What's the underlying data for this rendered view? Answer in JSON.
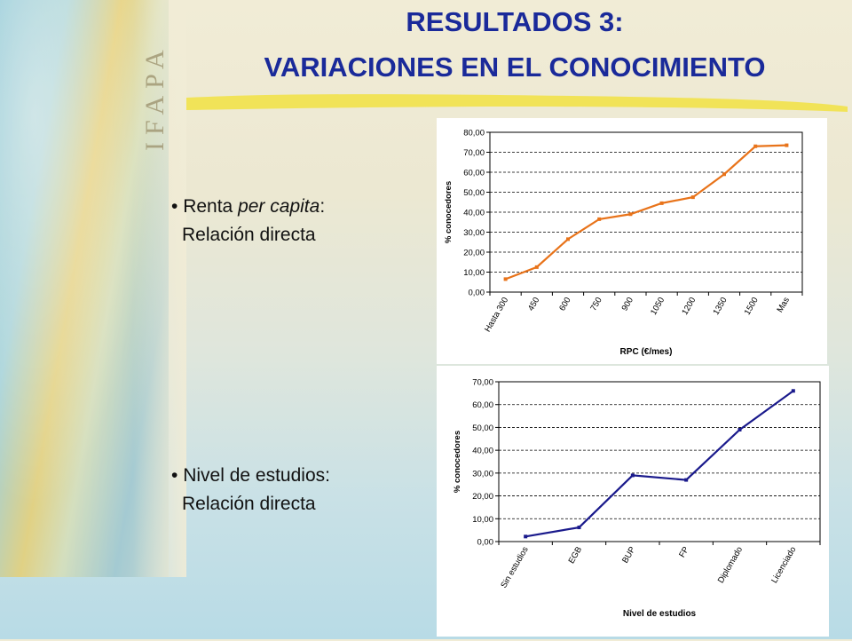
{
  "slide": {
    "logo_text": "IFAPA",
    "title_line1": "RESULTADOS 3:",
    "title_line2": "VARIACIONES EN EL CONOCIMIENTO",
    "bullet1": {
      "marker": "•",
      "pre": "Renta ",
      "italic": "per capita",
      "post": ":",
      "sub": "Relación directa"
    },
    "bullet2": {
      "marker": "•",
      "text": "Nivel de estudios:",
      "sub": "Relación directa"
    }
  },
  "chart_data": [
    {
      "type": "line",
      "color": "#e8731a",
      "categories": [
        "Hasta 300",
        "450",
        "600",
        "750",
        "900",
        "1050",
        "1200",
        "1350",
        "1500",
        "Mas"
      ],
      "x": [
        "Hasta 300",
        "450",
        "",
        "600",
        "",
        "750",
        "",
        "900",
        "",
        "1050",
        "",
        "1200",
        "",
        "1350",
        "",
        "1500",
        "",
        "Mas"
      ],
      "values": [
        6.5,
        12.5,
        26.5,
        36.5,
        39.0,
        44.5,
        47.5,
        59.0,
        73.0,
        73.5
      ],
      "ylabel": "% conocedores",
      "xlabel": "RPC (€/mes)",
      "ylim": [
        0,
        80
      ],
      "yticks": [
        "0,00",
        "10,00",
        "20,00",
        "30,00",
        "40,00",
        "50,00",
        "60,00",
        "70,00",
        "80,00"
      ],
      "grid": true
    },
    {
      "type": "line",
      "color": "#1a1a8c",
      "categories": [
        "Sin estudios",
        "EGB",
        "BUP",
        "FP",
        "Diplomado",
        "Licenciado"
      ],
      "values": [
        2.2,
        6.2,
        29.0,
        27.0,
        49.0,
        66.0
      ],
      "ylabel": "% conocedores",
      "xlabel": "Nivel de estudios",
      "ylim": [
        0,
        70
      ],
      "yticks": [
        "0,00",
        "10,00",
        "20,00",
        "30,00",
        "40,00",
        "50,00",
        "60,00",
        "70,00"
      ],
      "grid": true
    }
  ]
}
